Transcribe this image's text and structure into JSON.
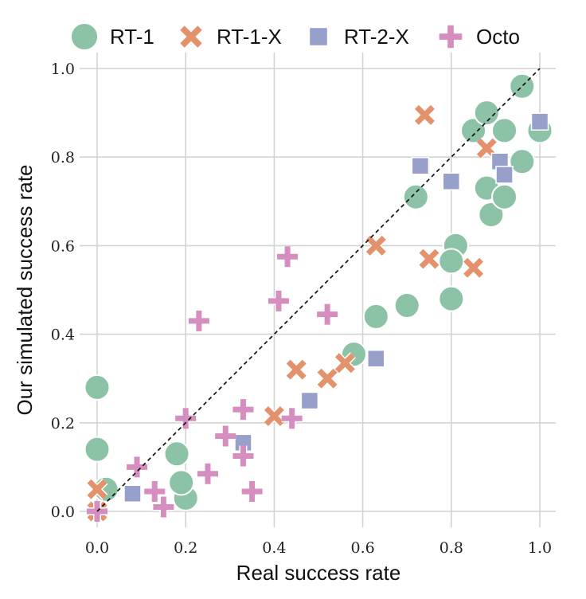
{
  "chart_data": {
    "type": "scatter",
    "xlabel": "Real success rate",
    "ylabel": "Our simulated success rate",
    "xlim": [
      -0.02,
      1.02
    ],
    "ylim": [
      -0.02,
      1.02
    ],
    "xticks": [
      "0.0",
      "0.2",
      "0.4",
      "0.6",
      "0.8",
      "1.0"
    ],
    "yticks": [
      "0.0",
      "0.2",
      "0.4",
      "0.6",
      "0.8",
      "1.0"
    ],
    "grid": true,
    "legend_position": "top",
    "reference_line": "y = x (dashed)",
    "series": [
      {
        "name": "RT-1",
        "marker": "circle",
        "color": "#8cc2a6",
        "points": [
          [
            0.0,
            0.28
          ],
          [
            0.0,
            0.14
          ],
          [
            0.02,
            0.05
          ],
          [
            0.18,
            0.13
          ],
          [
            0.2,
            0.03
          ],
          [
            0.19,
            0.065
          ],
          [
            0.58,
            0.355
          ],
          [
            0.63,
            0.44
          ],
          [
            0.7,
            0.465
          ],
          [
            0.72,
            0.71
          ],
          [
            0.8,
            0.48
          ],
          [
            0.81,
            0.6
          ],
          [
            0.8,
            0.565
          ],
          [
            0.85,
            0.86
          ],
          [
            0.88,
            0.73
          ],
          [
            0.88,
            0.9
          ],
          [
            0.89,
            0.67
          ],
          [
            0.92,
            0.71
          ],
          [
            0.92,
            0.86
          ],
          [
            0.96,
            0.79
          ],
          [
            0.96,
            0.96
          ],
          [
            1.0,
            0.86
          ]
        ]
      },
      {
        "name": "RT-1-X",
        "marker": "x",
        "color": "#e3926b",
        "points": [
          [
            0.0,
            0.0
          ],
          [
            0.0,
            0.05
          ],
          [
            0.4,
            0.215
          ],
          [
            0.45,
            0.32
          ],
          [
            0.52,
            0.3
          ],
          [
            0.56,
            0.335
          ],
          [
            0.63,
            0.6
          ],
          [
            0.74,
            0.895
          ],
          [
            0.75,
            0.57
          ],
          [
            0.85,
            0.55
          ],
          [
            0.88,
            0.82
          ]
        ]
      },
      {
        "name": "RT-2-X",
        "marker": "square",
        "color": "#96a0ca",
        "points": [
          [
            0.08,
            0.04
          ],
          [
            0.33,
            0.155
          ],
          [
            0.48,
            0.25
          ],
          [
            0.63,
            0.345
          ],
          [
            0.73,
            0.78
          ],
          [
            0.8,
            0.745
          ],
          [
            0.91,
            0.79
          ],
          [
            0.92,
            0.76
          ],
          [
            1.0,
            0.88
          ]
        ]
      },
      {
        "name": "Octo",
        "marker": "plus",
        "color": "#d58ebf",
        "points": [
          [
            0.0,
            0.0
          ],
          [
            0.09,
            0.1
          ],
          [
            0.13,
            0.045
          ],
          [
            0.15,
            0.01
          ],
          [
            0.2,
            0.21
          ],
          [
            0.23,
            0.43
          ],
          [
            0.25,
            0.085
          ],
          [
            0.29,
            0.17
          ],
          [
            0.33,
            0.23
          ],
          [
            0.33,
            0.125
          ],
          [
            0.35,
            0.045
          ],
          [
            0.41,
            0.475
          ],
          [
            0.43,
            0.575
          ],
          [
            0.44,
            0.21
          ],
          [
            0.52,
            0.445
          ]
        ]
      }
    ]
  }
}
